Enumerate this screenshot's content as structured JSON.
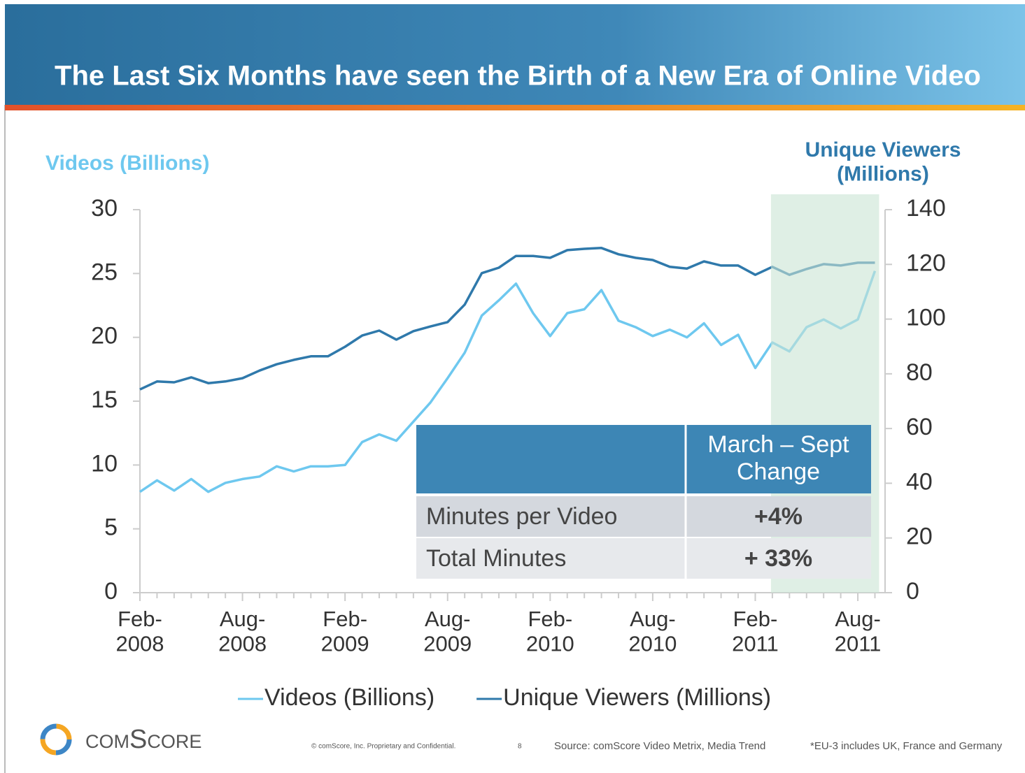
{
  "title": "The Last Six Months have seen the Birth of a New Era of Online Video",
  "chart_data": {
    "type": "line",
    "ylabel": "Videos (Billions)",
    "y2label": "Unique Viewers\n(Millions)",
    "categories": [
      "Feb-\n2008",
      null,
      null,
      null,
      null,
      null,
      "Aug-\n2008",
      null,
      null,
      null,
      null,
      null,
      "Feb-\n2009",
      null,
      null,
      null,
      null,
      null,
      "Aug-\n2009",
      null,
      null,
      null,
      null,
      null,
      "Feb-\n2010",
      null,
      null,
      null,
      null,
      null,
      "Aug-\n2010",
      null,
      null,
      null,
      null,
      null,
      "Feb-\n2011",
      null,
      null,
      null,
      null,
      null,
      "Aug-\n2011",
      null
    ],
    "series": [
      {
        "name": "Videos (Billions)",
        "color": "#6ec8ef",
        "values": [
          7.9,
          8.8,
          8.0,
          8.9,
          7.9,
          8.6,
          8.9,
          9.1,
          9.9,
          9.5,
          9.9,
          9.9,
          10.0,
          11.8,
          12.4,
          11.9,
          13.4,
          14.9,
          16.8,
          18.8,
          21.7,
          22.9,
          24.2,
          21.9,
          20.1,
          21.9,
          22.2,
          23.7,
          21.3,
          20.8,
          20.1,
          20.6,
          20.0,
          21.1,
          19.4,
          20.2,
          17.6,
          19.6,
          18.9,
          20.8,
          21.4,
          20.7,
          21.4,
          25.2
        ]
      },
      {
        "name": "Unique Viewers (Millions)",
        "color": "#2f79ab",
        "axis": "y2",
        "values": [
          74.3,
          77.2,
          76.9,
          78.7,
          76.6,
          77.2,
          78.4,
          81.2,
          83.5,
          85.1,
          86.4,
          86.4,
          89.9,
          94.0,
          95.8,
          92.5,
          95.6,
          97.3,
          98.9,
          105.3,
          116.8,
          118.8,
          123.1,
          123.1,
          122.4,
          125.2,
          125.7,
          126.0,
          123.7,
          122.4,
          121.6,
          119.1,
          118.5,
          121.1,
          119.6,
          119.6,
          116.2,
          119.1,
          116.2,
          118.3,
          120.1,
          119.6,
          120.6,
          120.6
        ]
      }
    ],
    "ylim": [
      0,
      30
    ],
    "yticks": [
      0,
      5,
      10,
      15,
      20,
      25,
      30
    ],
    "y2lim": [
      0,
      140
    ],
    "y2ticks": [
      0,
      20,
      40,
      60,
      80,
      100,
      120,
      140
    ],
    "highlight": {
      "from": 37,
      "to": 43,
      "color": "#c9e5d3"
    },
    "legend": "bottom"
  },
  "table": {
    "header": "March – Sept\nChange",
    "rows": [
      [
        "Minutes per Video",
        "+4%"
      ],
      [
        "Total Minutes",
        "+ 33%"
      ]
    ]
  },
  "footer": {
    "logo": "comScore",
    "copyright": "© comScore, Inc. Proprietary and Confidential.",
    "page": "8",
    "source": "Source: comScore Video Metrix, Media Trend",
    "note": "*EU-3 includes UK, France and Germany"
  }
}
